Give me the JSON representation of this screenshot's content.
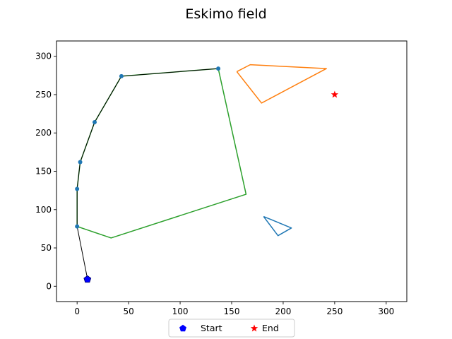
{
  "chart_data": {
    "type": "line",
    "title": "Eskimo field",
    "xlabel": "",
    "ylabel": "",
    "xlim": [
      -20,
      320
    ],
    "ylim": [
      -20,
      320
    ],
    "x_ticks": [
      0,
      50,
      100,
      150,
      200,
      250,
      300
    ],
    "y_ticks": [
      0,
      50,
      100,
      150,
      200,
      250,
      300
    ],
    "grid": false,
    "legend_position": "bottom-center",
    "obstacles": [
      {
        "color": "#1f77b4",
        "points": [
          [
            181,
            91
          ],
          [
            208,
            76
          ],
          [
            195,
            66
          ],
          [
            181,
            91
          ]
        ]
      },
      {
        "color": "#ff7f0e",
        "points": [
          [
            155,
            280
          ],
          [
            168,
            289
          ],
          [
            242,
            284
          ],
          [
            179,
            239
          ],
          [
            155,
            280
          ]
        ]
      },
      {
        "color": "#2ca02c",
        "points": [
          [
            0,
            78
          ],
          [
            0,
            127
          ],
          [
            3,
            162
          ],
          [
            17,
            214
          ],
          [
            43,
            274
          ],
          [
            137,
            284
          ],
          [
            164,
            120
          ],
          [
            33,
            63
          ],
          [
            0,
            78
          ]
        ]
      }
    ],
    "path": {
      "color": "#1f77b4",
      "line_color": "#000000",
      "points": [
        [
          10,
          10
        ],
        [
          0,
          78
        ],
        [
          0,
          127
        ],
        [
          3,
          162
        ],
        [
          17,
          214
        ],
        [
          43,
          274
        ],
        [
          137,
          284
        ]
      ]
    },
    "start": {
      "label": "Start",
      "x": 10,
      "y": 9,
      "color": "#0000ff"
    },
    "end": {
      "label": "End",
      "x": 250,
      "y": 250,
      "color": "#ff0000"
    }
  }
}
